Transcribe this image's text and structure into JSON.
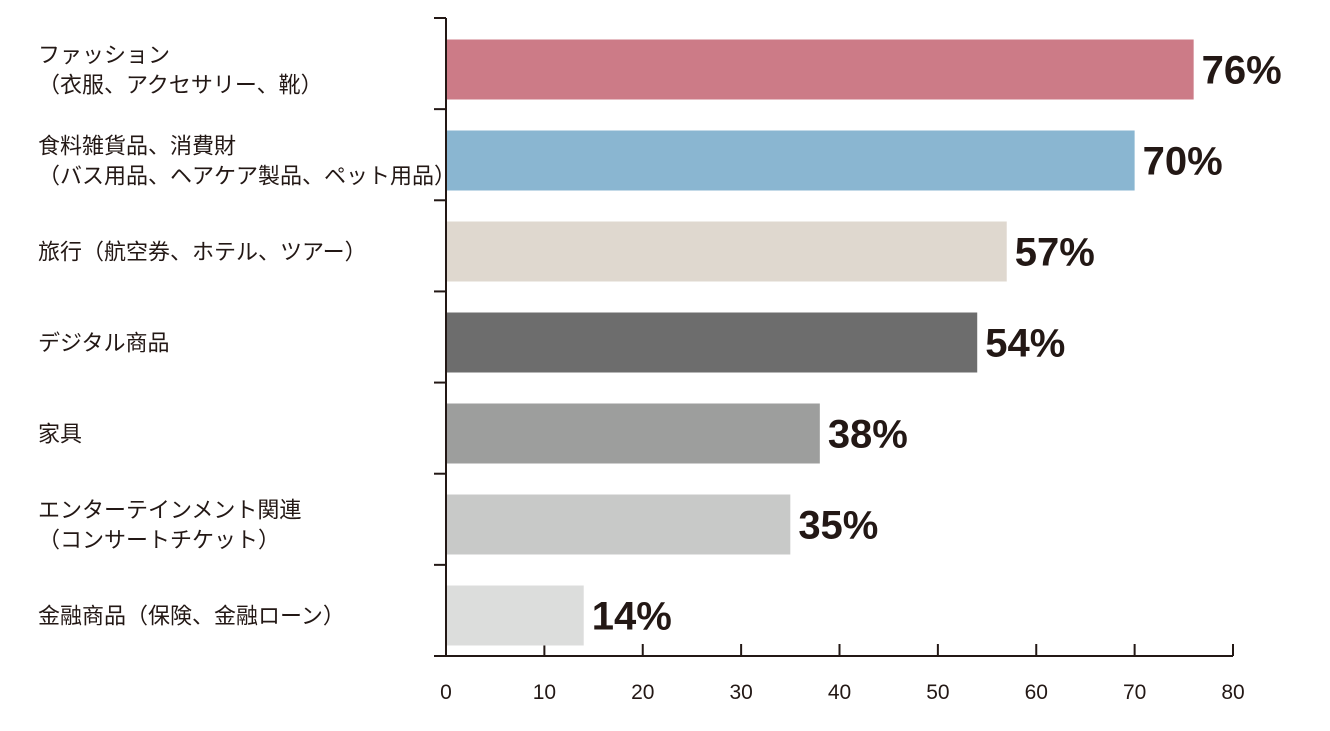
{
  "chart_data": {
    "type": "bar",
    "orientation": "horizontal",
    "categories": [
      [
        "ファッション",
        "（衣服、アクセサリー、靴）"
      ],
      [
        "食料雑貨品、消費財",
        "（バス用品、ヘアケア製品、ペット用品）"
      ],
      [
        "旅行（航空券、ホテル、ツアー）"
      ],
      [
        "デジタル商品"
      ],
      [
        "家具"
      ],
      [
        "エンターテインメント関連",
        "（コンサートチケット）"
      ],
      [
        "金融商品（保険、金融ローン）"
      ]
    ],
    "values": [
      76,
      70,
      57,
      54,
      38,
      35,
      14
    ],
    "value_labels": [
      "76%",
      "70%",
      "57%",
      "54%",
      "38%",
      "35%",
      "14%"
    ],
    "colors": [
      "#cc7b87",
      "#8ab6d1",
      "#dfd8cf",
      "#6d6d6d",
      "#9d9e9d",
      "#c8c9c8",
      "#dcdddc"
    ],
    "xlim": [
      0,
      80
    ],
    "xticks": [
      0,
      10,
      20,
      30,
      40,
      50,
      60,
      70,
      80
    ],
    "xtick_labels": [
      "0",
      "10",
      "20",
      "30",
      "40",
      "50",
      "60",
      "70",
      "80"
    ],
    "title": "",
    "xlabel": "",
    "ylabel": "",
    "grid": false,
    "legend": "none",
    "axis_color": "#231815"
  }
}
